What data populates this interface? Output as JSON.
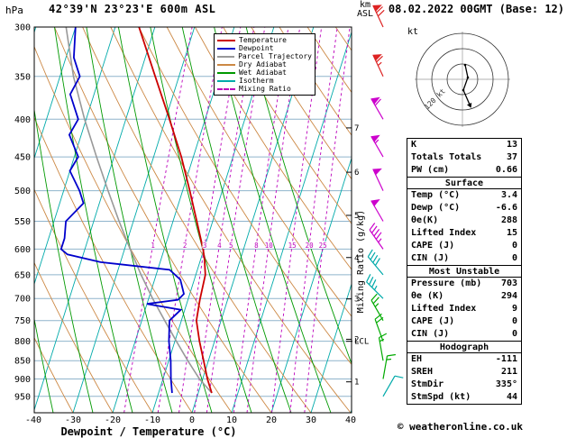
{
  "header": {
    "pressure_axis_unit": "hPa",
    "title": "42°39'N 23°23'E 600m ASL",
    "km_label": "km",
    "asl_label": "ASL",
    "datetime": "08.02.2022 00GMT (Base: 12)"
  },
  "axes": {
    "xlabel": "Dewpoint / Temperature (°C)",
    "lcl_label": "LCL",
    "mixing_ratio_axis_label": "Mixing Ratio (g/kg)"
  },
  "legend": {
    "items": [
      {
        "label": "Temperature",
        "color": "#cc0000",
        "dashed": false
      },
      {
        "label": "Dewpoint",
        "color": "#0000cc",
        "dashed": false
      },
      {
        "label": "Parcel Trajectory",
        "color": "#999999",
        "dashed": false
      },
      {
        "label": "Dry Adiabat",
        "color": "#cc8844",
        "dashed": false
      },
      {
        "label": "Wet Adiabat",
        "color": "#009900",
        "dashed": false
      },
      {
        "label": "Isotherm",
        "color": "#00aaaa",
        "dashed": false
      },
      {
        "label": "Mixing Ratio",
        "color": "#bb00bb",
        "dashed": true
      }
    ]
  },
  "hodograph": {
    "unit_label": "kt",
    "ring_label": "120 kt",
    "ring_speeds_kt": [
      40,
      80,
      120
    ]
  },
  "table": {
    "rows": [
      {
        "label": "K",
        "value": "13"
      },
      {
        "label": "Totals Totals",
        "value": "37"
      },
      {
        "label": "PW (cm)",
        "value": "0.66"
      },
      {
        "label": "Surface",
        "header": true
      },
      {
        "label": "Temp (°C)",
        "value": "3.4"
      },
      {
        "label": "Dewp (°C)",
        "value": "-6.6"
      },
      {
        "label": "θe(K)",
        "value": "288"
      },
      {
        "label": "Lifted Index",
        "value": "15"
      },
      {
        "label": "CAPE (J)",
        "value": "0"
      },
      {
        "label": "CIN (J)",
        "value": "0"
      },
      {
        "label": "Most Unstable",
        "header": true
      },
      {
        "label": "Pressure (mb)",
        "value": "703"
      },
      {
        "label": "θe (K)",
        "value": "294"
      },
      {
        "label": "Lifted Index",
        "value": "9"
      },
      {
        "label": "CAPE (J)",
        "value": "0"
      },
      {
        "label": "CIN (J)",
        "value": "0"
      },
      {
        "label": "Hodograph",
        "header": true
      },
      {
        "label": "EH",
        "value": "-111"
      },
      {
        "label": "SREH",
        "value": "211"
      },
      {
        "label": "StmDir",
        "value": "335°"
      },
      {
        "label": "StmSpd (kt)",
        "value": "44"
      }
    ]
  },
  "footer": {
    "copyright": "© weatheronline.co.uk"
  },
  "chart_data": {
    "type": "line",
    "variant": "skew-t-log-p sounding",
    "title": "42°39'N 23°23'E 600m ASL",
    "datetime": "08.02.2022 00GMT (Base: 12)",
    "xlabel": "Dewpoint / Temperature (°C)",
    "x_ticks": [
      -40,
      -30,
      -20,
      -10,
      0,
      10,
      20,
      30,
      40
    ],
    "x_range_c": [
      -40,
      40
    ],
    "pressure_ticks_hpa": [
      300,
      350,
      400,
      450,
      500,
      550,
      600,
      650,
      700,
      750,
      800,
      850,
      900,
      950
    ],
    "pressure_range_hpa": [
      1000,
      300
    ],
    "km_asl_ticks": [
      1,
      2,
      3,
      4,
      5,
      6,
      7
    ],
    "lcl_pressure_hpa": 800,
    "mixing_ratio_lines_g_kg": [
      1,
      2,
      3,
      4,
      5,
      8,
      10,
      15,
      20,
      25
    ],
    "colors": {
      "temperature": "#cc0000",
      "dewpoint": "#0000cc",
      "parcel": "#999999",
      "dry_adiabat": "#cc8844",
      "wet_adiabat": "#009900",
      "isotherm": "#00aaaa",
      "mixing_ratio": "#bb00bb",
      "pressure_grid": "#8fb4cc"
    },
    "series": [
      {
        "name": "Temperature",
        "color": "#cc0000",
        "points_p_hpa_t_c": [
          [
            940,
            3.4
          ],
          [
            900,
            1.2
          ],
          [
            850,
            -1.2
          ],
          [
            800,
            -3.8
          ],
          [
            750,
            -6.2
          ],
          [
            703,
            -7.0
          ],
          [
            650,
            -7.6
          ],
          [
            620,
            -9.0
          ],
          [
            600,
            -10.2
          ],
          [
            550,
            -14.0
          ],
          [
            500,
            -18.2
          ],
          [
            450,
            -23.0
          ],
          [
            400,
            -29.0
          ],
          [
            350,
            -36.0
          ],
          [
            300,
            -44.0
          ]
        ]
      },
      {
        "name": "Dewpoint",
        "color": "#0000cc",
        "points_p_hpa_t_c": [
          [
            940,
            -6.6
          ],
          [
            900,
            -8.0
          ],
          [
            850,
            -9.5
          ],
          [
            800,
            -11.5
          ],
          [
            750,
            -13.0
          ],
          [
            725,
            -11.0
          ],
          [
            712,
            -20.0
          ],
          [
            703,
            -12.5
          ],
          [
            690,
            -11.5
          ],
          [
            660,
            -13.5
          ],
          [
            640,
            -17.0
          ],
          [
            625,
            -35.0
          ],
          [
            610,
            -44.0
          ],
          [
            600,
            -46.0
          ],
          [
            580,
            -46.0
          ],
          [
            550,
            -47.0
          ],
          [
            520,
            -44.0
          ],
          [
            500,
            -46.0
          ],
          [
            470,
            -50.0
          ],
          [
            450,
            -49.0
          ],
          [
            420,
            -53.0
          ],
          [
            400,
            -52.0
          ],
          [
            370,
            -56.0
          ],
          [
            350,
            -55.0
          ],
          [
            330,
            -58.0
          ],
          [
            300,
            -60.0
          ]
        ]
      },
      {
        "name": "Parcel Trajectory",
        "color": "#999999",
        "points_p_hpa_t_c": [
          [
            940,
            3.4
          ],
          [
            900,
            -0.8
          ],
          [
            850,
            -5.2
          ],
          [
            800,
            -9.6
          ],
          [
            750,
            -14.2
          ],
          [
            700,
            -19.0
          ],
          [
            650,
            -23.8
          ],
          [
            600,
            -28.6
          ],
          [
            550,
            -33.6
          ],
          [
            500,
            -38.8
          ],
          [
            450,
            -44.4
          ],
          [
            400,
            -50.4
          ],
          [
            350,
            -56.6
          ],
          [
            300,
            -62.4
          ]
        ]
      }
    ],
    "wind_barbs": [
      {
        "p_hpa": 300,
        "speed_kt": 70,
        "dir_deg": 335,
        "color": "#dd2222"
      },
      {
        "p_hpa": 350,
        "speed_kt": 65,
        "dir_deg": 335,
        "color": "#dd2222"
      },
      {
        "p_hpa": 400,
        "speed_kt": 60,
        "dir_deg": 330,
        "color": "#cc00cc"
      },
      {
        "p_hpa": 450,
        "speed_kt": 55,
        "dir_deg": 330,
        "color": "#cc00cc"
      },
      {
        "p_hpa": 500,
        "speed_kt": 50,
        "dir_deg": 335,
        "color": "#cc00cc"
      },
      {
        "p_hpa": 550,
        "speed_kt": 50,
        "dir_deg": 330,
        "color": "#cc00cc"
      },
      {
        "p_hpa": 600,
        "speed_kt": 45,
        "dir_deg": 325,
        "color": "#cc00cc"
      },
      {
        "p_hpa": 650,
        "speed_kt": 40,
        "dir_deg": 320,
        "color": "#00aaaa"
      },
      {
        "p_hpa": 700,
        "speed_kt": 35,
        "dir_deg": 315,
        "color": "#00aaaa"
      },
      {
        "p_hpa": 750,
        "speed_kt": 25,
        "dir_deg": 330,
        "color": "#00aa00"
      },
      {
        "p_hpa": 800,
        "speed_kt": 20,
        "dir_deg": 340,
        "color": "#00aa00"
      },
      {
        "p_hpa": 850,
        "speed_kt": 15,
        "dir_deg": 350,
        "color": "#00aa00"
      },
      {
        "p_hpa": 900,
        "speed_kt": 15,
        "dir_deg": 10,
        "color": "#00aa00"
      },
      {
        "p_hpa": 950,
        "speed_kt": 10,
        "dir_deg": 30,
        "color": "#00aaaa"
      }
    ]
  }
}
